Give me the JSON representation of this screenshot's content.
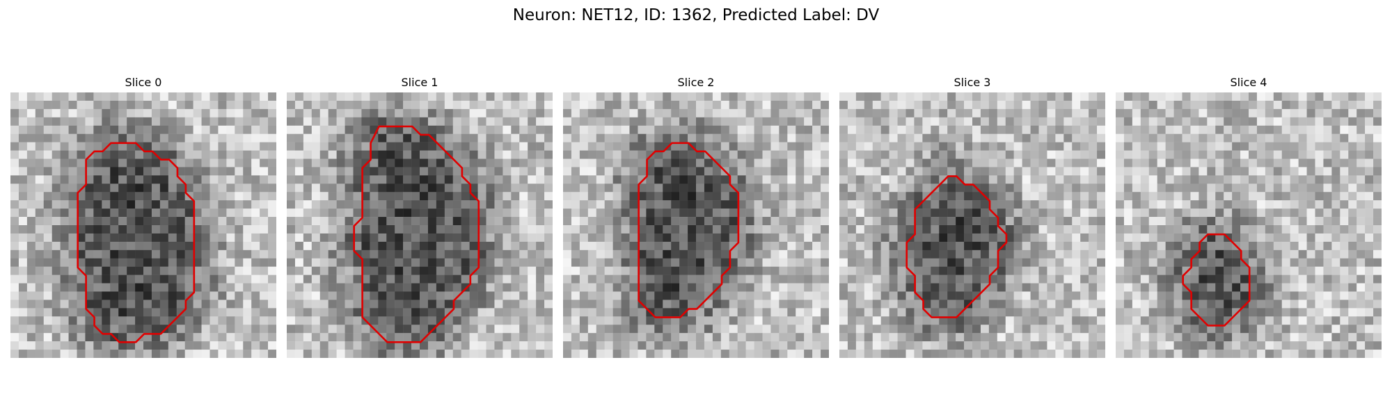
{
  "figure": {
    "title": "Neuron: NET12, ID: 1362, Predicted Label: DV"
  },
  "slices": [
    {
      "label": "Slice 0",
      "image": "grayscale microscopy patch",
      "contour_color": "#e00000",
      "contour": [
        [
          13.1,
          6.1
        ],
        [
          15.1,
          6.1
        ],
        [
          16.1,
          7.1
        ],
        [
          17.1,
          7.1
        ],
        [
          18.1,
          8.1
        ],
        [
          19.1,
          8.1
        ],
        [
          20.1,
          9.1
        ],
        [
          20.1,
          10.1
        ],
        [
          21.1,
          11.1
        ],
        [
          21.1,
          12.1
        ],
        [
          22.1,
          13.1
        ],
        [
          22.1,
          24.1
        ],
        [
          21.1,
          25.1
        ],
        [
          21.1,
          26.1
        ],
        [
          18.1,
          29.1
        ],
        [
          16.1,
          29.1
        ],
        [
          15.1,
          30.1
        ],
        [
          13.1,
          30.1
        ],
        [
          12.1,
          29.1
        ],
        [
          11.1,
          29.1
        ],
        [
          10.1,
          28.1
        ],
        [
          10.1,
          27.1
        ],
        [
          9.1,
          26.1
        ],
        [
          9.1,
          22.1
        ],
        [
          8.1,
          21.1
        ],
        [
          8.1,
          20.1
        ],
        [
          8.1,
          12.1
        ],
        [
          9.1,
          11.1
        ],
        [
          9.1,
          8.1
        ],
        [
          10.1,
          7.1
        ],
        [
          11.1,
          7.1
        ],
        [
          12.1,
          6.1
        ]
      ]
    },
    {
      "label": "Slice 1",
      "image": "grayscale microscopy patch",
      "contour_color": "#e00000",
      "contour": [
        [
          11.1,
          4.1
        ],
        [
          15.1,
          4.1
        ],
        [
          16.1,
          5.1
        ],
        [
          17.1,
          5.1
        ],
        [
          18.1,
          6.1
        ],
        [
          19.1,
          7.1
        ],
        [
          20.1,
          8.1
        ],
        [
          21.1,
          9.1
        ],
        [
          21.1,
          10.1
        ],
        [
          22.1,
          11.1
        ],
        [
          22.1,
          12.1
        ],
        [
          23.1,
          13.1
        ],
        [
          23.1,
          21.1
        ],
        [
          22.1,
          22.1
        ],
        [
          22.1,
          23.1
        ],
        [
          21.1,
          24.1
        ],
        [
          20.1,
          25.1
        ],
        [
          20.1,
          26.1
        ],
        [
          19.1,
          27.1
        ],
        [
          18.1,
          28.1
        ],
        [
          17.1,
          29.1
        ],
        [
          16.1,
          30.1
        ],
        [
          12.1,
          30.1
        ],
        [
          11.1,
          29.1
        ],
        [
          10.1,
          28.1
        ],
        [
          9.1,
          27.1
        ],
        [
          9.1,
          26.1
        ],
        [
          9.1,
          20.1
        ],
        [
          8.1,
          19.1
        ],
        [
          8.1,
          16.1
        ],
        [
          9.1,
          15.1
        ],
        [
          9.1,
          9.1
        ],
        [
          10.1,
          8.1
        ],
        [
          10.1,
          6.1
        ]
      ]
    },
    {
      "label": "Slice 2",
      "image": "grayscale microscopy patch",
      "contour_color": "#e00000",
      "contour": [
        [
          13.1,
          6.1
        ],
        [
          15.1,
          6.1
        ],
        [
          16.1,
          7.1
        ],
        [
          17.1,
          7.1
        ],
        [
          18.1,
          8.1
        ],
        [
          19.1,
          9.1
        ],
        [
          20.1,
          10.1
        ],
        [
          20.1,
          11.1
        ],
        [
          21.1,
          12.1
        ],
        [
          21.1,
          18.1
        ],
        [
          20.1,
          19.1
        ],
        [
          20.1,
          21.1
        ],
        [
          19.1,
          22.1
        ],
        [
          19.1,
          23.1
        ],
        [
          18.1,
          24.1
        ],
        [
          17.1,
          25.1
        ],
        [
          16.1,
          26.1
        ],
        [
          15.1,
          26.1
        ],
        [
          14.1,
          27.1
        ],
        [
          11.1,
          27.1
        ],
        [
          10.1,
          26.1
        ],
        [
          9.1,
          25.1
        ],
        [
          9.1,
          11.1
        ],
        [
          10.1,
          10.1
        ],
        [
          10.1,
          8.1
        ],
        [
          11.1,
          7.1
        ],
        [
          12.1,
          7.1
        ]
      ]
    },
    {
      "label": "Slice 3",
      "image": "grayscale microscopy patch",
      "contour_color": "#e00000",
      "contour": [
        [
          13.1,
          10.1
        ],
        [
          14.1,
          10.1
        ],
        [
          15.1,
          11.1
        ],
        [
          16.1,
          11.1
        ],
        [
          17.1,
          12.1
        ],
        [
          18.1,
          13.1
        ],
        [
          18.1,
          14.1
        ],
        [
          19.1,
          15.1
        ],
        [
          19.1,
          16.1
        ],
        [
          20.1,
          17.1
        ],
        [
          20.1,
          18.1
        ],
        [
          19.1,
          19.1
        ],
        [
          19.1,
          21.1
        ],
        [
          18.1,
          22.1
        ],
        [
          18.1,
          23.1
        ],
        [
          17.1,
          24.1
        ],
        [
          16.1,
          25.1
        ],
        [
          15.1,
          26.1
        ],
        [
          14.1,
          27.1
        ],
        [
          11.1,
          27.1
        ],
        [
          10.1,
          26.1
        ],
        [
          10.1,
          25.1
        ],
        [
          9.1,
          24.1
        ],
        [
          9.1,
          22.1
        ],
        [
          8.1,
          21.1
        ],
        [
          8.1,
          18.1
        ],
        [
          9.1,
          17.1
        ],
        [
          9.1,
          14.1
        ],
        [
          10.1,
          13.1
        ],
        [
          11.1,
          12.1
        ],
        [
          12.1,
          11.1
        ]
      ]
    },
    {
      "label": "Slice 4",
      "image": "grayscale microscopy patch",
      "contour_color": "#e00000",
      "contour": [
        [
          11.1,
          17.1
        ],
        [
          12.1,
          17.1
        ],
        [
          13.1,
          17.1
        ],
        [
          14.1,
          18.1
        ],
        [
          15.1,
          19.1
        ],
        [
          15.1,
          20.1
        ],
        [
          16.1,
          21.1
        ],
        [
          16.1,
          25.1
        ],
        [
          15.1,
          26.1
        ],
        [
          14.1,
          27.1
        ],
        [
          13.1,
          28.1
        ],
        [
          11.1,
          28.1
        ],
        [
          10.1,
          27.1
        ],
        [
          9.1,
          26.1
        ],
        [
          9.1,
          24.1
        ],
        [
          8.1,
          23.1
        ],
        [
          8.1,
          22.1
        ],
        [
          9.1,
          21.1
        ],
        [
          9.1,
          20.1
        ],
        [
          10.1,
          19.1
        ],
        [
          10.1,
          18.1
        ]
      ]
    }
  ]
}
